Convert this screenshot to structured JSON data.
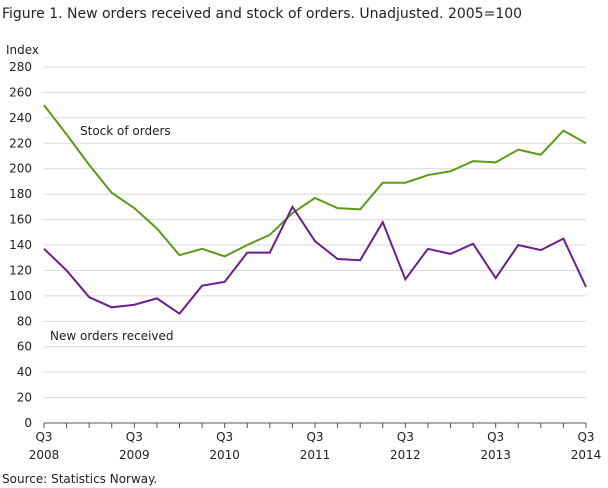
{
  "chart_data": {
    "type": "line",
    "title": "Figure 1. New orders received and stock of orders. Unadjusted. 2005=100",
    "y_label": "Index",
    "source": "Source: Statistics Norway.",
    "categories": [
      "Q3 2008",
      null,
      null,
      null,
      "Q3 2009",
      null,
      null,
      null,
      "Q3 2010",
      null,
      null,
      null,
      "Q3 2011",
      null,
      null,
      null,
      "Q3 2012",
      null,
      null,
      null,
      "Q3 2013",
      null,
      null,
      null,
      "Q3 2014"
    ],
    "series": [
      {
        "name": "Stock of orders",
        "color": "#5b9a16",
        "values": [
          250,
          227,
          203,
          181,
          169,
          153,
          132,
          137,
          131,
          140,
          148,
          165,
          177,
          169,
          168,
          189,
          189,
          195,
          198,
          206,
          205,
          215,
          211,
          230,
          220
        ]
      },
      {
        "name": "New orders received",
        "color": "#6b1e8c",
        "values": [
          137,
          120,
          99,
          91,
          93,
          98,
          86,
          108,
          111,
          134,
          134,
          170,
          143,
          129,
          128,
          158,
          113,
          137,
          133,
          141,
          114,
          140,
          136,
          145,
          107
        ]
      }
    ],
    "ylim": [
      0,
      280
    ],
    "yticks": [
      0,
      20,
      40,
      60,
      80,
      100,
      120,
      140,
      160,
      180,
      200,
      220,
      240,
      260,
      280
    ],
    "grid": true
  }
}
